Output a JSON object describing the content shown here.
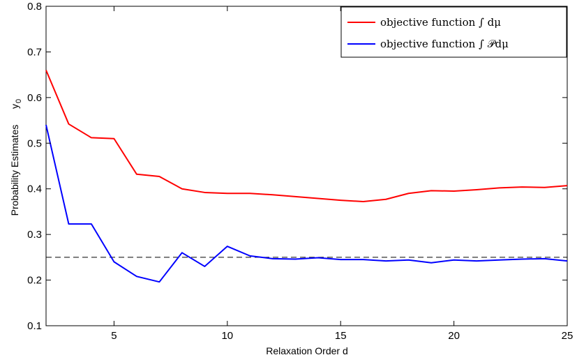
{
  "chart_data": {
    "type": "line",
    "title": "",
    "xlabel": "Relaxation Order d",
    "ylabel": "Probability Estimates",
    "ylabel_symbol": "y",
    "ylabel_subscript": "0",
    "xlim": [
      2,
      25
    ],
    "ylim": [
      0.1,
      0.8
    ],
    "xticks": [
      5,
      10,
      15,
      20,
      25
    ],
    "yticks": [
      0.1,
      0.2,
      0.3,
      0.4,
      0.5,
      0.6,
      0.7,
      0.8
    ],
    "grid": false,
    "legend_position": "top-right",
    "reference_line": {
      "y": 0.25,
      "style": "dashed",
      "color": "#000000"
    },
    "x": [
      2,
      3,
      4,
      5,
      6,
      7,
      8,
      9,
      10,
      11,
      12,
      13,
      14,
      15,
      16,
      17,
      18,
      19,
      20,
      21,
      22,
      23,
      24,
      25
    ],
    "series": [
      {
        "name": "objective function ∫ dμ",
        "color": "#ff0000",
        "values": [
          0.66,
          0.542,
          0.512,
          0.51,
          0.432,
          0.427,
          0.4,
          0.392,
          0.39,
          0.39,
          0.387,
          0.383,
          0.379,
          0.375,
          0.372,
          0.377,
          0.39,
          0.396,
          0.395,
          0.398,
          0.402,
          0.404,
          0.403,
          0.407
        ]
      },
      {
        "name": "objective function ∫ 𝒫dμ",
        "color": "#0000ff",
        "values": [
          0.54,
          0.323,
          0.323,
          0.24,
          0.208,
          0.196,
          0.26,
          0.23,
          0.274,
          0.253,
          0.247,
          0.246,
          0.249,
          0.245,
          0.245,
          0.242,
          0.244,
          0.238,
          0.244,
          0.242,
          0.244,
          0.246,
          0.247,
          0.242
        ]
      }
    ]
  }
}
